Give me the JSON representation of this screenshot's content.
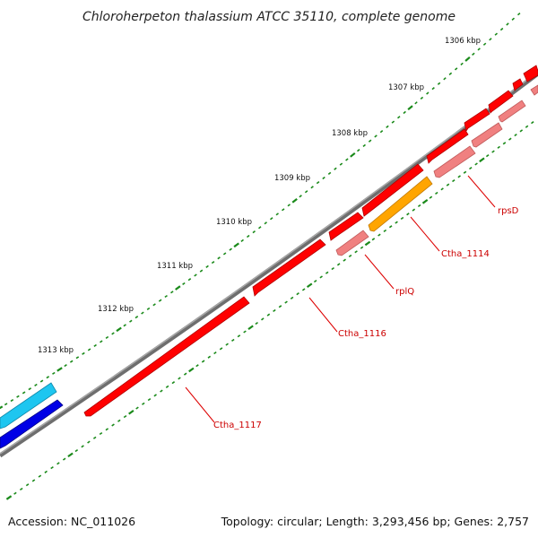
{
  "map": {
    "title": "Chloroherpeton thalassium ATCC 35110, complete genome",
    "accession_text": "Accession: NC_011026",
    "summary_text": "Topology: circular; Length: 3,293,456 bp; Genes: 2,757"
  },
  "ticks": [
    "1306 kbp",
    "1307 kbp",
    "1308 kbp",
    "1309 kbp",
    "1310 kbp",
    "1311 kbp",
    "1312 kbp",
    "1313 kbp"
  ],
  "gene_labels": [
    "rpsD",
    "Ctha_1114",
    "rplQ",
    "Ctha_1116",
    "Ctha_1117"
  ],
  "colors": {
    "backbone": "#808080",
    "gene_red": "#ff0000",
    "gene_pink": "#f08080",
    "gene_orange": "#ffa500",
    "gene_cyan": "#1ec6f0",
    "gene_blue": "#0000e6",
    "tick_green": "#1a8a1a",
    "label_red": "#cc0000"
  }
}
